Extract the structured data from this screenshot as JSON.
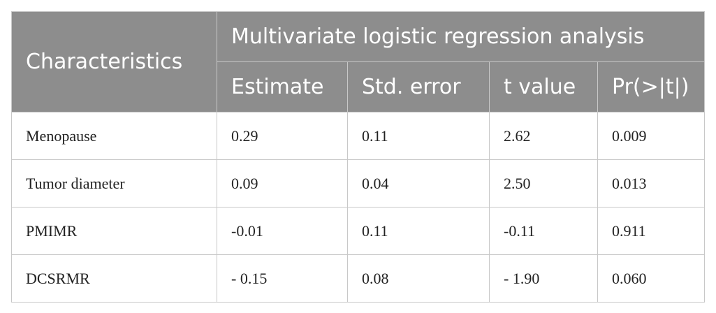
{
  "table": {
    "header": {
      "title": "Characteristics",
      "group": "Multivariate logistic regression analysis",
      "columns": [
        "Estimate",
        "Std. error",
        "t value",
        "Pr(>|t|)"
      ]
    },
    "rows": [
      [
        "Menopause",
        "0.29",
        "0.11",
        "2.62",
        "0.009"
      ],
      [
        "Tumor diameter",
        "0.09",
        "0.04",
        "2.50",
        "0.013"
      ],
      [
        "PMIMR",
        "-0.01",
        "0.11",
        "-0.11",
        "0.911"
      ],
      [
        "DCSRMR",
        "- 0.15",
        "0.08",
        "- 1.90",
        "0.060"
      ]
    ]
  }
}
